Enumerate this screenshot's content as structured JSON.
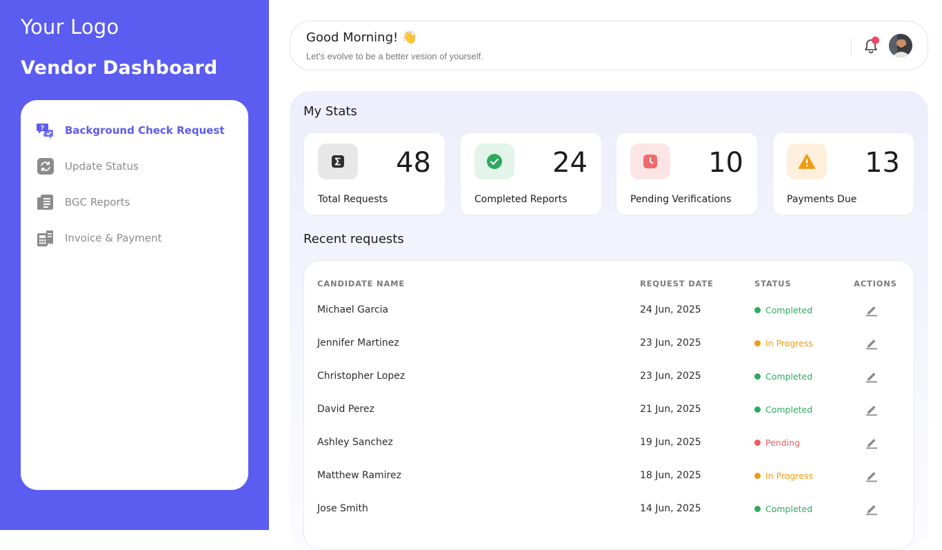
{
  "sidebar": {
    "logo": "Your Logo",
    "title": "Vendor Dashboard",
    "items": [
      {
        "label": "Background Check Request",
        "icon": "chat-question-icon",
        "active": true
      },
      {
        "label": "Update Status",
        "icon": "refresh-icon",
        "active": false
      },
      {
        "label": "BGC Reports",
        "icon": "report-icon",
        "active": false
      },
      {
        "label": "Invoice & Payment",
        "icon": "calculator-icon",
        "active": false
      }
    ]
  },
  "header": {
    "greeting": "Good Morning! 👋",
    "subtitle": "Let's evolve to be a better vesion of yourself."
  },
  "stats": {
    "title": "My Stats",
    "cards": [
      {
        "value": "48",
        "label": "Total Requests",
        "icon": "sigma-icon",
        "icon_bg": "#e7e7e7",
        "icon_color": "#3a3a3a"
      },
      {
        "value": "24",
        "label": "Completed Reports",
        "icon": "check-circle-icon",
        "icon_bg": "#e3f5ea",
        "icon_color": "#2ea95e"
      },
      {
        "value": "10",
        "label": "Pending Verifications",
        "icon": "clock-icon",
        "icon_bg": "#fde5e6",
        "icon_color": "#ef6a6d"
      },
      {
        "value": "13",
        "label": "Payments Due",
        "icon": "warning-icon",
        "icon_bg": "#fdefdb",
        "icon_color": "#f09a12"
      }
    ]
  },
  "recent": {
    "title": "Recent requests",
    "columns": [
      "CANDIDATE NAME",
      "REQUEST DATE",
      "STATUS",
      "ACTIONS"
    ],
    "rows": [
      {
        "name": "Michael Garcia",
        "date": "24 Jun, 2025",
        "status": "Completed",
        "status_color": "#2ea95e"
      },
      {
        "name": "Jennifer Martinez",
        "date": "23 Jun, 2025",
        "status": "In Progress",
        "status_color": "#f09a12"
      },
      {
        "name": "Christopher Lopez",
        "date": "23 Jun, 2025",
        "status": "Completed",
        "status_color": "#2ea95e"
      },
      {
        "name": "David Perez",
        "date": "21 Jun, 2025",
        "status": "Completed",
        "status_color": "#2ea95e"
      },
      {
        "name": "Ashley Sanchez",
        "date": "19 Jun, 2025",
        "status": "Pending",
        "status_color": "#ef5b5e"
      },
      {
        "name": "Matthew Ramirez",
        "date": "18 Jun, 2025",
        "status": "In Progress",
        "status_color": "#f09a12"
      },
      {
        "name": "Jose Smith",
        "date": "14 Jun, 2025",
        "status": "Completed",
        "status_color": "#2ea95e"
      }
    ]
  },
  "colors": {
    "brand": "#5b5cf0",
    "notification_dot": "#f04764"
  }
}
